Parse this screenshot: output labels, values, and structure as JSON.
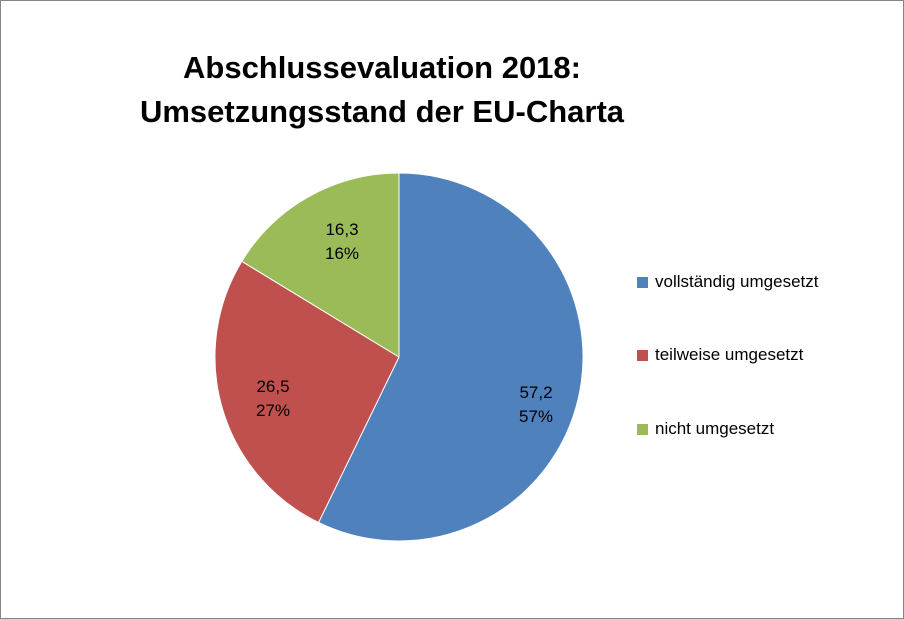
{
  "chart_data": {
    "type": "pie",
    "title_lines": [
      "Abschlussevaluation 2018:",
      "Umsetzungsstand der EU-Charta"
    ],
    "slices": [
      {
        "label": "vollständig umgesetzt",
        "value": 57.2,
        "value_label": "57,2",
        "percent_label": "57%",
        "color": "#4F81BD"
      },
      {
        "label": "teilweise umgesetzt",
        "value": 26.5,
        "value_label": "26,5",
        "percent_label": "27%",
        "color": "#C0504D"
      },
      {
        "label": "nicht umgesetzt",
        "value": 16.3,
        "value_label": "16,3",
        "percent_label": "16%",
        "color": "#9BBB59"
      }
    ],
    "legend_position": "right",
    "start_angle": "12 o'clock",
    "direction": "clockwise"
  }
}
